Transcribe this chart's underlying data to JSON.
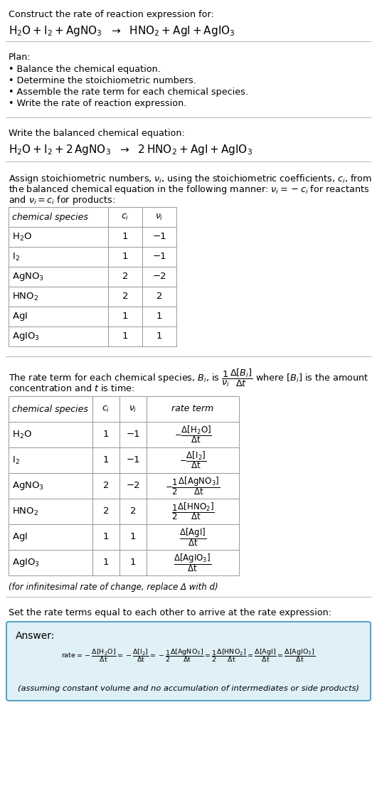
{
  "bg_color": "#ffffff",
  "answer_box_color": "#dff0f7",
  "answer_border_color": "#5ba3c9",
  "plan_items": [
    "• Balance the chemical equation.",
    "• Determine the stoichiometric numbers.",
    "• Assemble the rate term for each chemical species.",
    "• Write the rate of reaction expression."
  ],
  "table1_species": [
    "H₂O",
    "I₂",
    "AgNO₃",
    "HNO₂",
    "AgI",
    "AgIO₃"
  ],
  "table1_ci": [
    "1",
    "1",
    "2",
    "2",
    "1",
    "1"
  ],
  "table1_vi": [
    "-1",
    "-1",
    "-2",
    "2",
    "1",
    "1"
  ],
  "table2_species": [
    "H₂O",
    "I₂",
    "AgNO₃",
    "HNO₂",
    "AgI",
    "AgIO₃"
  ],
  "table2_ci": [
    "1",
    "1",
    "2",
    "2",
    "1",
    "1"
  ],
  "table2_vi": [
    "-1",
    "-1",
    "-2",
    "2",
    "1",
    "1"
  ],
  "infinitesimal_note": "(for infinitesimal rate of change, replace Δ with d)",
  "set_equal_text": "Set the rate terms equal to each other to arrive at the rate expression:",
  "assuming_note": "(assuming constant volume and no accumulation of intermediates or side products)"
}
